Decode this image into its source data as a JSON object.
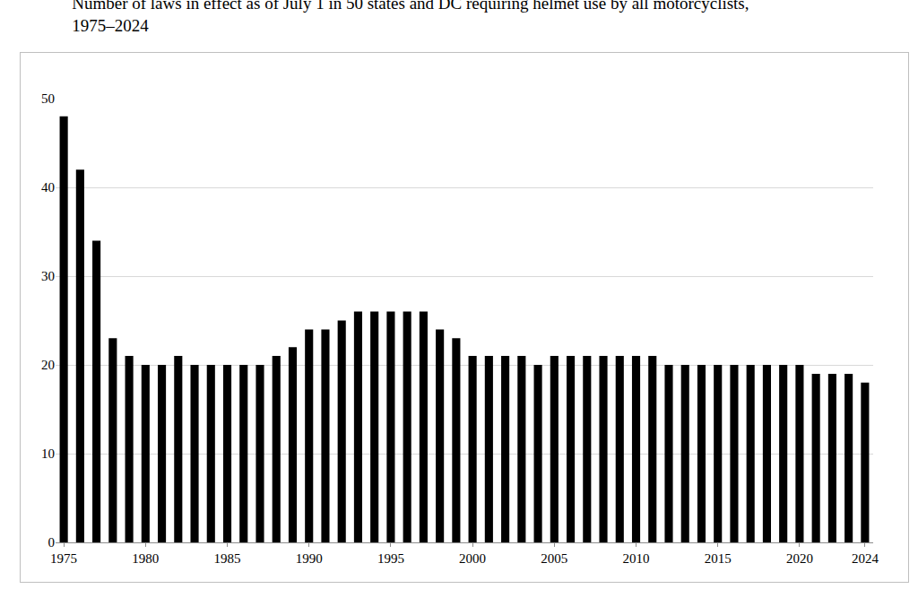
{
  "chart_data": {
    "type": "bar",
    "title": "Number of laws in effect as of July 1 in 50 states and DC requiring helmet use by all motorcyclists, 1975–2024",
    "x": [
      1975,
      1976,
      1977,
      1978,
      1979,
      1980,
      1981,
      1982,
      1983,
      1984,
      1985,
      1986,
      1987,
      1988,
      1989,
      1990,
      1991,
      1992,
      1993,
      1994,
      1995,
      1996,
      1997,
      1998,
      1999,
      2000,
      2001,
      2002,
      2003,
      2004,
      2005,
      2006,
      2007,
      2008,
      2009,
      2010,
      2011,
      2012,
      2013,
      2014,
      2015,
      2016,
      2017,
      2018,
      2019,
      2020,
      2021,
      2022,
      2023,
      2024
    ],
    "values": [
      48,
      42,
      34,
      23,
      21,
      20,
      20,
      21,
      20,
      20,
      20,
      20,
      20,
      21,
      22,
      24,
      24,
      25,
      26,
      26,
      26,
      26,
      26,
      24,
      23,
      21,
      21,
      21,
      21,
      20,
      21,
      21,
      21,
      21,
      21,
      21,
      21,
      20,
      20,
      20,
      20,
      20,
      20,
      20,
      20,
      20,
      19,
      19,
      19,
      18
    ],
    "color": "#000000",
    "xlim": [
      1974.5,
      2024.5
    ],
    "xticks": [
      1975,
      1980,
      1985,
      1990,
      1995,
      2000,
      2005,
      2010,
      2015,
      2020,
      2024
    ],
    "ylim": [
      0,
      50
    ],
    "yticks": [
      0,
      10,
      20,
      30,
      40,
      50
    ],
    "grid": true
  }
}
